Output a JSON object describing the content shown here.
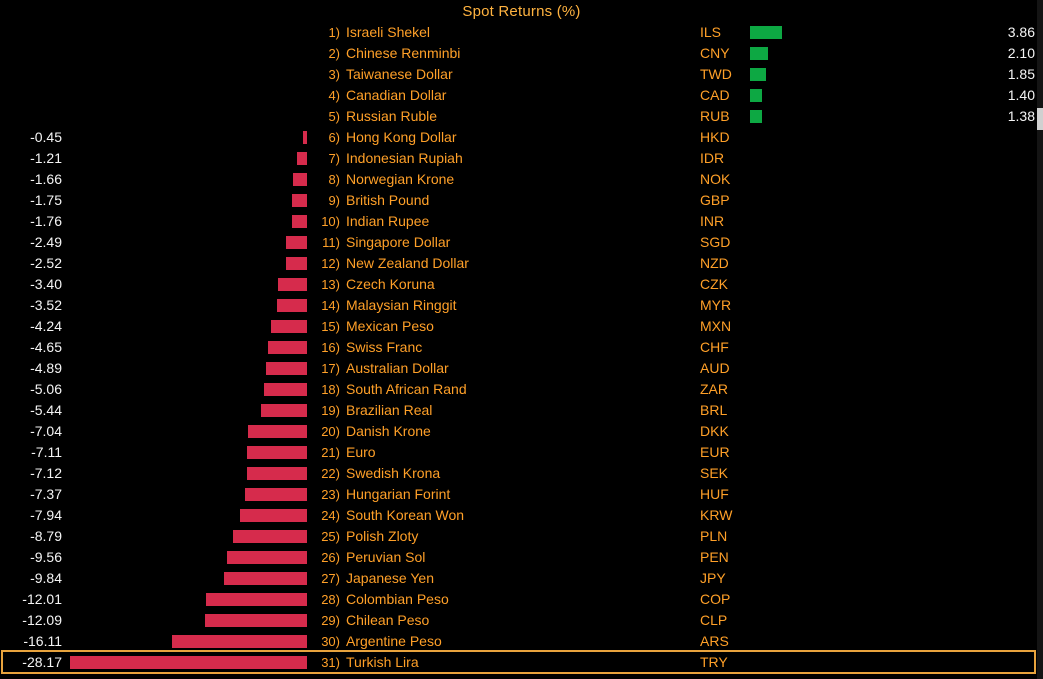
{
  "title": "Spot Returns (%)",
  "colors": {
    "background": "#000000",
    "title": "#ffb340",
    "label": "#ffa028",
    "value_text": "#f5f5f5",
    "positive_bar": "#0da843",
    "negative_bar": "#d62b4c",
    "highlight_border": "#e8a33d",
    "scrollbar_track": "#141414",
    "scrollbar_thumb": "#d0d0d0"
  },
  "chart_data": {
    "type": "bar",
    "orientation": "horizontal-diverging",
    "title": "Spot Returns (%)",
    "unit": "%",
    "xlim": [
      -30,
      5
    ],
    "grid": false,
    "legend": false,
    "highlighted_ticker": "TRY",
    "rows": [
      {
        "rank": "1)",
        "name": "Israeli Shekel",
        "ticker": "ILS",
        "value": 3.86,
        "label": "3.86"
      },
      {
        "rank": "2)",
        "name": "Chinese Renminbi",
        "ticker": "CNY",
        "value": 2.1,
        "label": "2.10"
      },
      {
        "rank": "3)",
        "name": "Taiwanese Dollar",
        "ticker": "TWD",
        "value": 1.85,
        "label": "1.85"
      },
      {
        "rank": "4)",
        "name": "Canadian Dollar",
        "ticker": "CAD",
        "value": 1.4,
        "label": "1.40"
      },
      {
        "rank": "5)",
        "name": "Russian Ruble",
        "ticker": "RUB",
        "value": 1.38,
        "label": "1.38"
      },
      {
        "rank": "6)",
        "name": "Hong Kong Dollar",
        "ticker": "HKD",
        "value": -0.45,
        "label": "-0.45"
      },
      {
        "rank": "7)",
        "name": "Indonesian Rupiah",
        "ticker": "IDR",
        "value": -1.21,
        "label": "-1.21"
      },
      {
        "rank": "8)",
        "name": "Norwegian Krone",
        "ticker": "NOK",
        "value": -1.66,
        "label": "-1.66"
      },
      {
        "rank": "9)",
        "name": "British Pound",
        "ticker": "GBP",
        "value": -1.75,
        "label": "-1.75"
      },
      {
        "rank": "10)",
        "name": "Indian Rupee",
        "ticker": "INR",
        "value": -1.76,
        "label": "-1.76"
      },
      {
        "rank": "11)",
        "name": "Singapore Dollar",
        "ticker": "SGD",
        "value": -2.49,
        "label": "-2.49"
      },
      {
        "rank": "12)",
        "name": "New Zealand Dollar",
        "ticker": "NZD",
        "value": -2.52,
        "label": "-2.52"
      },
      {
        "rank": "13)",
        "name": "Czech Koruna",
        "ticker": "CZK",
        "value": -3.4,
        "label": "-3.40"
      },
      {
        "rank": "14)",
        "name": "Malaysian Ringgit",
        "ticker": "MYR",
        "value": -3.52,
        "label": "-3.52"
      },
      {
        "rank": "15)",
        "name": "Mexican Peso",
        "ticker": "MXN",
        "value": -4.24,
        "label": "-4.24"
      },
      {
        "rank": "16)",
        "name": "Swiss Franc",
        "ticker": "CHF",
        "value": -4.65,
        "label": "-4.65"
      },
      {
        "rank": "17)",
        "name": "Australian Dollar",
        "ticker": "AUD",
        "value": -4.89,
        "label": "-4.89"
      },
      {
        "rank": "18)",
        "name": "South African Rand",
        "ticker": "ZAR",
        "value": -5.06,
        "label": "-5.06"
      },
      {
        "rank": "19)",
        "name": "Brazilian Real",
        "ticker": "BRL",
        "value": -5.44,
        "label": "-5.44"
      },
      {
        "rank": "20)",
        "name": "Danish Krone",
        "ticker": "DKK",
        "value": -7.04,
        "label": "-7.04"
      },
      {
        "rank": "21)",
        "name": "Euro",
        "ticker": "EUR",
        "value": -7.11,
        "label": "-7.11"
      },
      {
        "rank": "22)",
        "name": "Swedish Krona",
        "ticker": "SEK",
        "value": -7.12,
        "label": "-7.12"
      },
      {
        "rank": "23)",
        "name": "Hungarian Forint",
        "ticker": "HUF",
        "value": -7.37,
        "label": "-7.37"
      },
      {
        "rank": "24)",
        "name": "South Korean Won",
        "ticker": "KRW",
        "value": -7.94,
        "label": "-7.94"
      },
      {
        "rank": "25)",
        "name": "Polish Zloty",
        "ticker": "PLN",
        "value": -8.79,
        "label": "-8.79"
      },
      {
        "rank": "26)",
        "name": "Peruvian Sol",
        "ticker": "PEN",
        "value": -9.56,
        "label": "-9.56"
      },
      {
        "rank": "27)",
        "name": "Japanese Yen",
        "ticker": "JPY",
        "value": -9.84,
        "label": "-9.84"
      },
      {
        "rank": "28)",
        "name": "Colombian Peso",
        "ticker": "COP",
        "value": -12.01,
        "label": "-12.01"
      },
      {
        "rank": "29)",
        "name": "Chilean Peso",
        "ticker": "CLP",
        "value": -12.09,
        "label": "-12.09"
      },
      {
        "rank": "30)",
        "name": "Argentine Peso",
        "ticker": "ARS",
        "value": -16.11,
        "label": "-16.11"
      },
      {
        "rank": "31)",
        "name": "Turkish Lira",
        "ticker": "TRY",
        "value": -28.17,
        "label": "-28.17"
      }
    ]
  }
}
